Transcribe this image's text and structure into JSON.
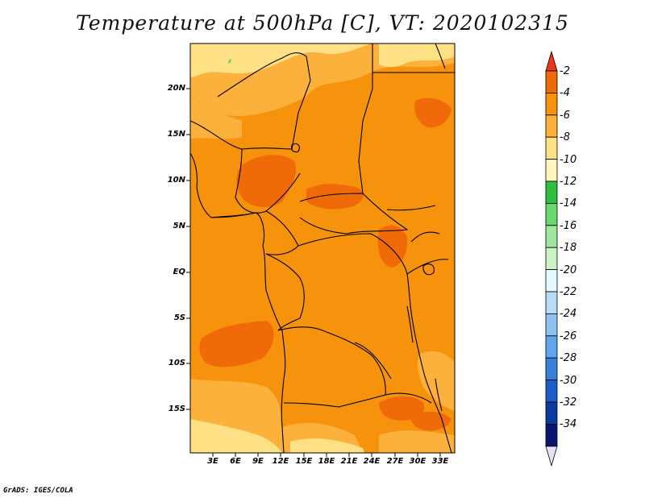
{
  "title": "Temperature at 500hPa [C], VT: 2020102315",
  "credit": "GrADS: IGES/COLA",
  "lat_labels": [
    "20N",
    "15N",
    "10N",
    "5N",
    "EQ",
    "5S",
    "10S",
    "15S"
  ],
  "lon_labels": [
    "3E",
    "6E",
    "9E",
    "12E",
    "15E",
    "18E",
    "21E",
    "24E",
    "27E",
    "30E",
    "33E"
  ],
  "colorbar": {
    "labels": [
      "-2",
      "-4",
      "-6",
      "-8",
      "-10",
      "-12",
      "-14",
      "-16",
      "-18",
      "-20",
      "-22",
      "-24",
      "-26",
      "-28",
      "-30",
      "-32",
      "-34"
    ],
    "colors": [
      "#e8381a",
      "#f06a0a",
      "#f7920c",
      "#fbb13c",
      "#fee085",
      "#fff6be",
      "#2fbf3f",
      "#67d86b",
      "#9fe79c",
      "#ccf3c7",
      "#e6f8ff",
      "#b8dcf6",
      "#8ec3f0",
      "#5fa6ea",
      "#3880dc",
      "#1d5cc8",
      "#0a3aa0",
      "#0b1670",
      "#e5e3f3"
    ]
  },
  "chart_data": {
    "type": "heatmap",
    "variable": "Temperature at 500hPa",
    "units": "C",
    "valid_time": "2020102315",
    "lon_range": [
      0,
      35
    ],
    "lat_range": [
      -20,
      25
    ],
    "contour_levels": [
      -2,
      -4,
      -6,
      -8,
      -10,
      -12,
      -14,
      -16,
      -18,
      -20,
      -22,
      -24,
      -26,
      -28,
      -30,
      -32,
      -34
    ]
  }
}
